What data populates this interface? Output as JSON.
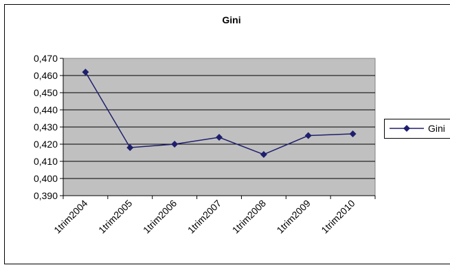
{
  "chart_data": {
    "type": "line",
    "title": "Gini",
    "xlabel": "",
    "ylabel": "",
    "categories": [
      "1trim2004",
      "1trim2005",
      "1trim2006",
      "1trim2007",
      "1trim2008",
      "1trim2009",
      "1trim2010"
    ],
    "y_ticks": [
      "0,390",
      "0,400",
      "0,410",
      "0,420",
      "0,430",
      "0,440",
      "0,450",
      "0,460",
      "0,470"
    ],
    "ylim": [
      0.39,
      0.47
    ],
    "grid": true,
    "legend_position": "right",
    "plot_background": "#c0c0c0",
    "series": [
      {
        "name": "Gini",
        "color": "#1f1f6e",
        "marker": "diamond",
        "values": [
          0.462,
          0.418,
          0.42,
          0.424,
          0.414,
          0.425,
          0.426
        ]
      }
    ]
  }
}
